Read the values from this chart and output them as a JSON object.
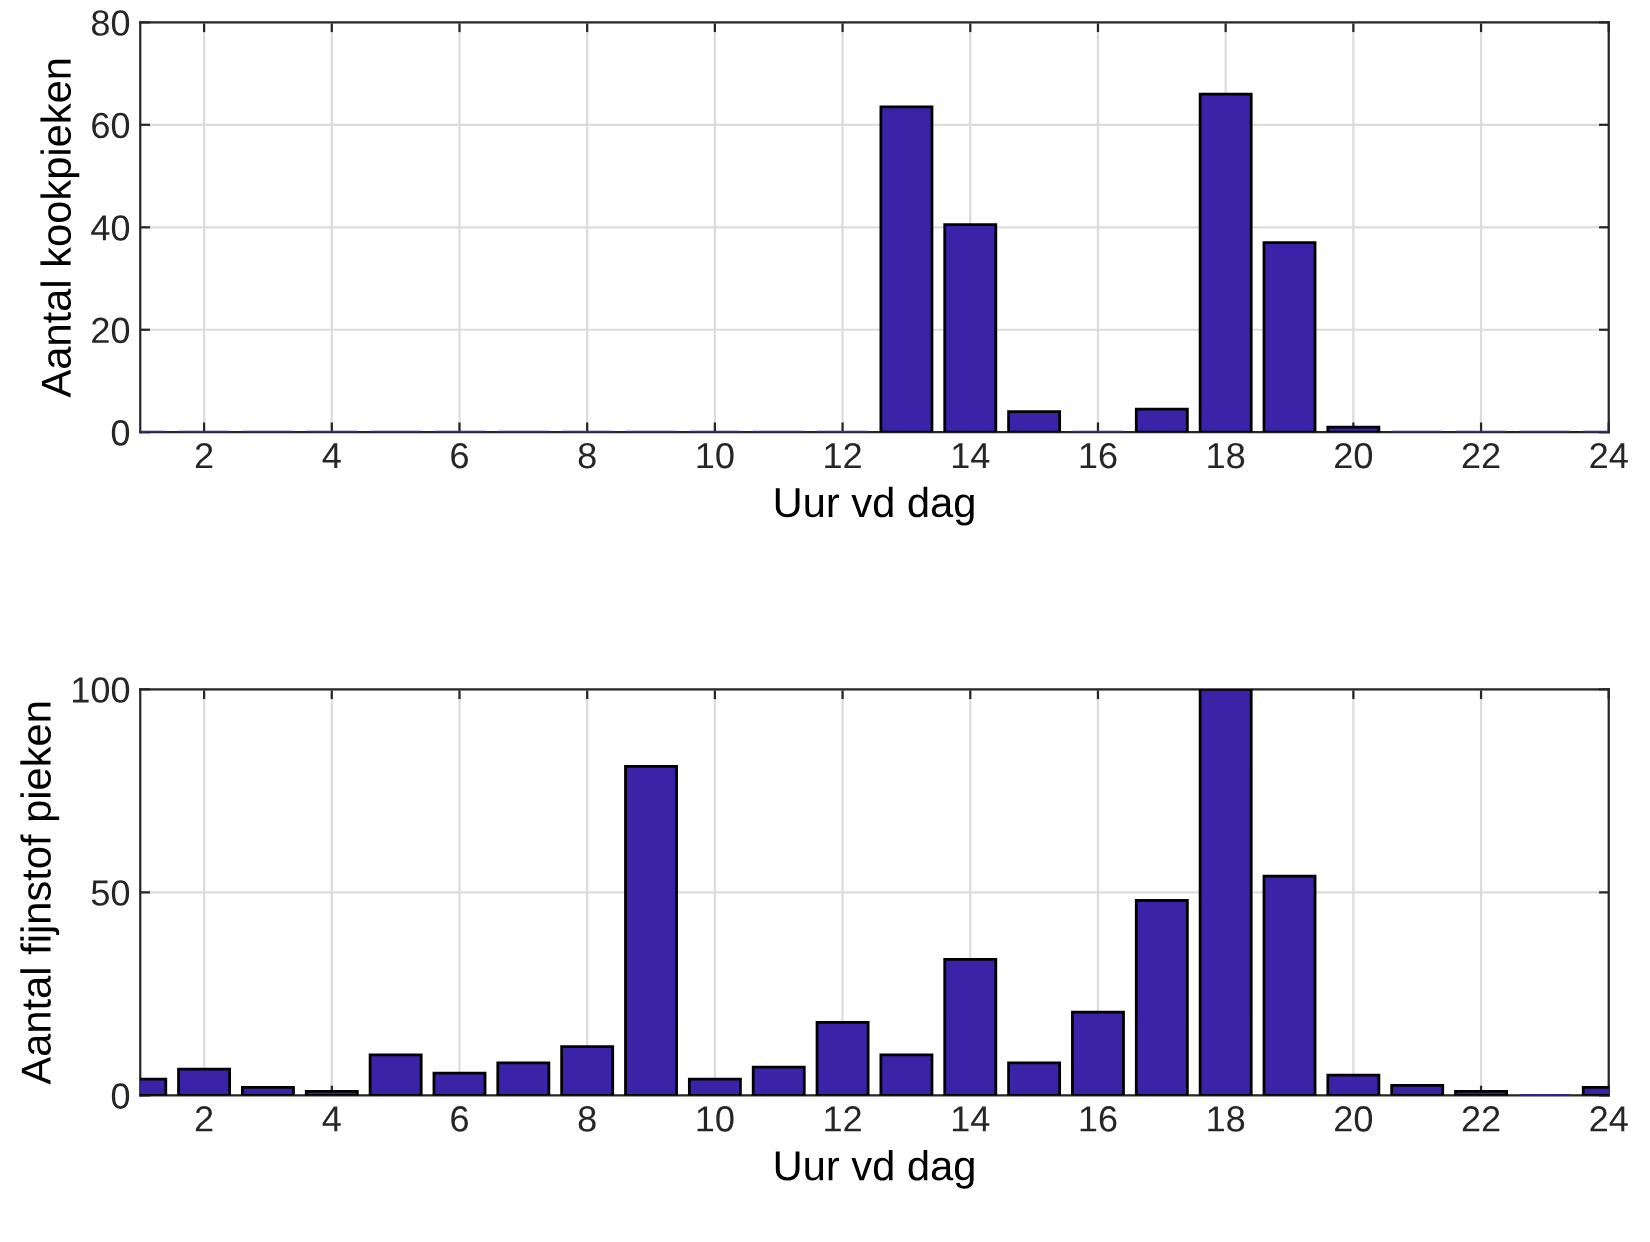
{
  "chart_data": [
    {
      "type": "bar",
      "xlabel": "Uur vd dag",
      "ylabel": "Aantal kookpieken",
      "x": [
        1,
        2,
        3,
        4,
        5,
        6,
        7,
        8,
        9,
        10,
        11,
        12,
        13,
        14,
        15,
        16,
        17,
        18,
        19,
        20,
        21,
        22,
        23,
        24
      ],
      "series": [
        {
          "color": "#3a23a6",
          "values": [
            0,
            0,
            0,
            0,
            0,
            0,
            0,
            0,
            0,
            0,
            0,
            0,
            63.5,
            40.5,
            4,
            0,
            4.5,
            66,
            37,
            1,
            0,
            0,
            0,
            0
          ]
        }
      ],
      "xlim": [
        1,
        24
      ],
      "xticks": [
        2,
        4,
        6,
        8,
        10,
        12,
        14,
        16,
        18,
        20,
        22,
        24
      ],
      "ylim": [
        0,
        80
      ],
      "yticks": [
        0,
        20,
        40,
        60,
        80
      ],
      "grid": true
    },
    {
      "type": "bar",
      "xlabel": "Uur vd dag",
      "ylabel": "Aantal fijnstof pieken",
      "x": [
        1,
        2,
        3,
        4,
        5,
        6,
        7,
        8,
        9,
        10,
        11,
        12,
        13,
        14,
        15,
        16,
        17,
        18,
        19,
        20,
        21,
        22,
        23,
        24
      ],
      "series": [
        {
          "color": "#3a23a6",
          "values": [
            4,
            6.5,
            2,
            1,
            10,
            5.5,
            8,
            12,
            81,
            4,
            7,
            18,
            10,
            33.5,
            8,
            20.5,
            48,
            100,
            54,
            5,
            2.5,
            1,
            0,
            2
          ]
        }
      ],
      "xlim": [
        1,
        24
      ],
      "xticks": [
        2,
        4,
        6,
        8,
        10,
        12,
        14,
        16,
        18,
        20,
        22,
        24
      ],
      "ylim": [
        0,
        100
      ],
      "yticks": [
        0,
        50,
        100
      ],
      "grid": true
    }
  ]
}
